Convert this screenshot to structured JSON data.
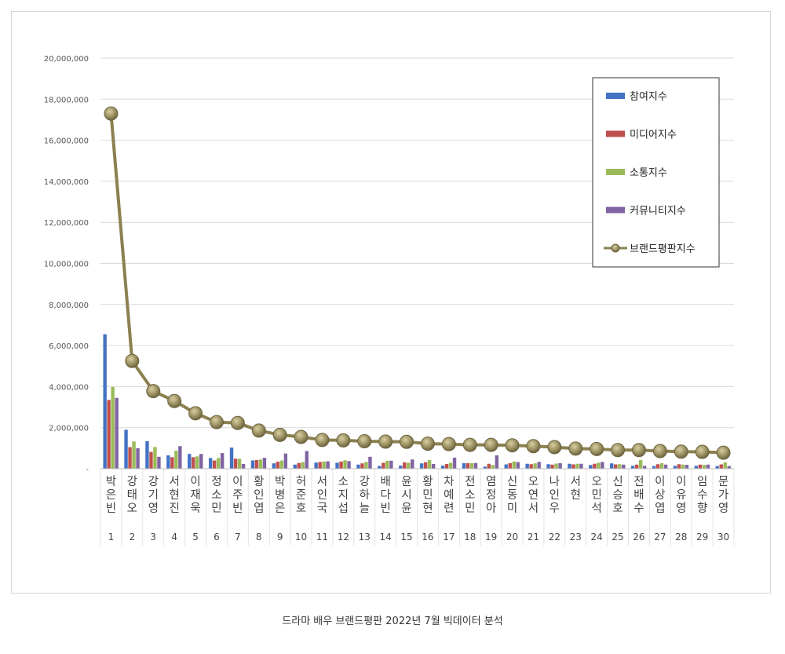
{
  "caption": "드라마 배우 브랜드평판  2022년 7월 빅데이터 분석",
  "chart_data": {
    "type": "bar",
    "categories": [
      "박은빈",
      "강태오",
      "강기영",
      "서현진",
      "이재욱",
      "정소민",
      "이주빈",
      "황인엽",
      "박병은",
      "허준호",
      "서인국",
      "소지섭",
      "강하늘",
      "배다빈",
      "윤시윤",
      "황민현",
      "차예련",
      "전소민",
      "염정아",
      "신동미",
      "오연서",
      "나인우",
      "서현",
      "오민석",
      "신승호",
      "전배수",
      "이상엽",
      "이유영",
      "임수향",
      "문가영"
    ],
    "ranks": [
      "1",
      "2",
      "3",
      "4",
      "5",
      "6",
      "7",
      "8",
      "9",
      "10",
      "11",
      "12",
      "13",
      "14",
      "15",
      "16",
      "17",
      "18",
      "19",
      "20",
      "21",
      "22",
      "23",
      "24",
      "25",
      "26",
      "27",
      "28",
      "29",
      "30"
    ],
    "series": [
      {
        "name": "참여지수",
        "type": "bar",
        "color": "#4472c4",
        "values": [
          6550000,
          1900000,
          1340000,
          650000,
          720000,
          520000,
          1030000,
          400000,
          260000,
          200000,
          300000,
          290000,
          200000,
          140000,
          150000,
          260000,
          150000,
          270000,
          100000,
          210000,
          240000,
          220000,
          240000,
          180000,
          260000,
          140000,
          130000,
          140000,
          140000,
          130000
        ]
      },
      {
        "name": "미디어지수",
        "type": "bar",
        "color": "#c0504d",
        "values": [
          3350000,
          1050000,
          820000,
          560000,
          560000,
          400000,
          490000,
          420000,
          340000,
          280000,
          330000,
          350000,
          260000,
          290000,
          310000,
          320000,
          230000,
          270000,
          240000,
          270000,
          220000,
          200000,
          210000,
          240000,
          210000,
          200000,
          220000,
          220000,
          200000,
          210000
        ]
      },
      {
        "name": "소통지수",
        "type": "bar",
        "color": "#9bbb59",
        "values": [
          3980000,
          1330000,
          1060000,
          880000,
          600000,
          520000,
          480000,
          450000,
          400000,
          320000,
          350000,
          410000,
          330000,
          390000,
          290000,
          420000,
          290000,
          270000,
          180000,
          350000,
          260000,
          250000,
          240000,
          290000,
          220000,
          420000,
          270000,
          200000,
          190000,
          310000
        ]
      },
      {
        "name": "커뮤니티지수",
        "type": "bar",
        "color": "#8064a2",
        "values": [
          3450000,
          1000000,
          580000,
          1100000,
          720000,
          760000,
          230000,
          530000,
          740000,
          860000,
          360000,
          370000,
          580000,
          390000,
          450000,
          230000,
          540000,
          280000,
          650000,
          320000,
          330000,
          270000,
          240000,
          330000,
          200000,
          140000,
          200000,
          190000,
          200000,
          130000
        ]
      },
      {
        "name": "브랜드평판지수",
        "type": "line",
        "color": "#8b8050",
        "values": [
          17300000,
          5250000,
          3780000,
          3300000,
          2700000,
          2270000,
          2230000,
          1860000,
          1650000,
          1550000,
          1400000,
          1380000,
          1340000,
          1320000,
          1310000,
          1220000,
          1200000,
          1160000,
          1160000,
          1140000,
          1100000,
          1050000,
          980000,
          960000,
          910000,
          910000,
          860000,
          830000,
          820000,
          780000
        ]
      }
    ],
    "y_ticks": [
      "-",
      "2,000,000",
      "4,000,000",
      "6,000,000",
      "8,000,000",
      "10,000,000",
      "12,000,000",
      "14,000,000",
      "16,000,000",
      "18,000,000",
      "20,000,000"
    ],
    "ylim": [
      0,
      20000000
    ],
    "grid": true,
    "legend_position": "top-right"
  }
}
